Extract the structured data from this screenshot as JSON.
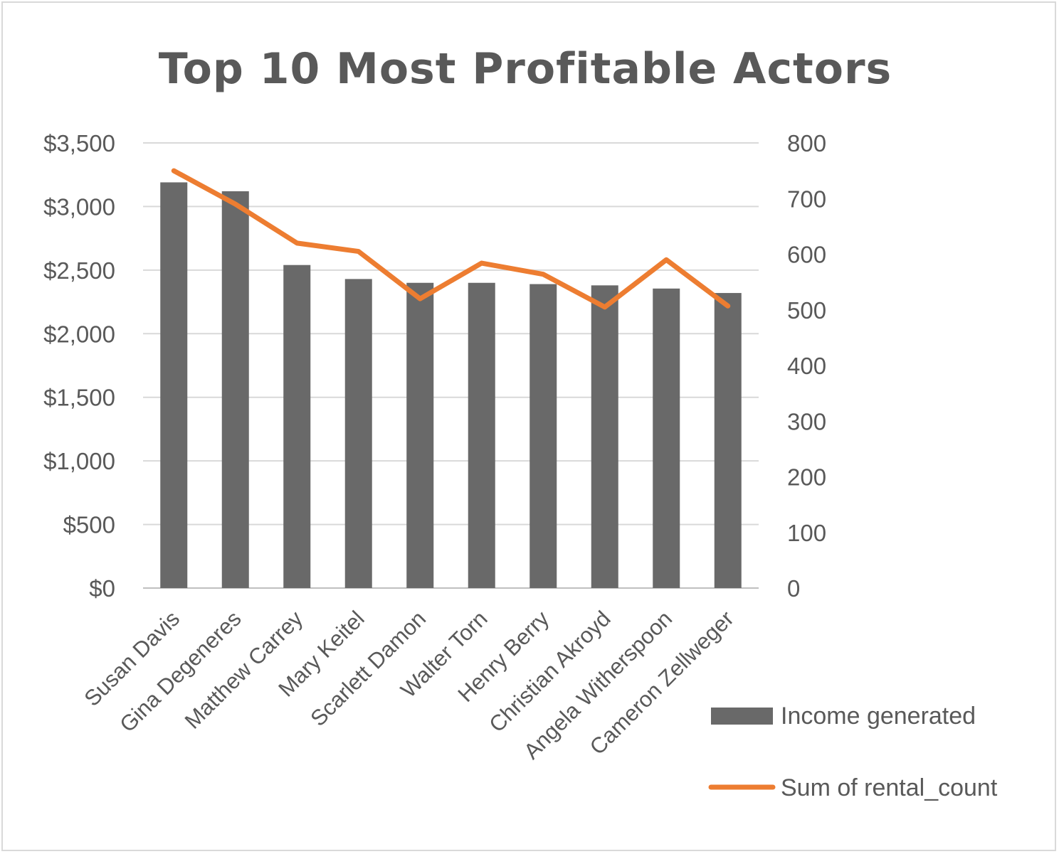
{
  "chart_data": {
    "type": "bar",
    "title": "Top 10 Most Profitable Actors",
    "categories": [
      "Susan Davis",
      "Gina Degeneres",
      "Matthew Carrey",
      "Mary Keitel",
      "Scarlett Damon",
      "Walter Torn",
      "Henry Berry",
      "Christian Akroyd",
      "Angela Witherspoon",
      "Cameron Zellweger"
    ],
    "series": [
      {
        "name": "Income generated",
        "type": "bar",
        "axis": "left",
        "color": "#696969",
        "values": [
          3190,
          3120,
          2540,
          2430,
          2400,
          2400,
          2390,
          2380,
          2355,
          2320
        ]
      },
      {
        "name": "Sum of rental_count",
        "type": "line",
        "axis": "right",
        "color": "#ed7d31",
        "values": [
          750,
          690,
          620,
          605,
          520,
          584,
          564,
          505,
          590,
          507
        ]
      }
    ],
    "y_left": {
      "ylim": [
        0,
        3500
      ],
      "ticks": [
        "$0",
        "$500",
        "$1,000",
        "$1,500",
        "$2,000",
        "$2,500",
        "$3,000",
        "$3,500"
      ],
      "tick_values": [
        0,
        500,
        1000,
        1500,
        2000,
        2500,
        3000,
        3500
      ]
    },
    "y_right": {
      "ylim": [
        0,
        800
      ],
      "ticks": [
        "0",
        "100",
        "200",
        "300",
        "400",
        "500",
        "600",
        "700",
        "800"
      ],
      "tick_values": [
        0,
        100,
        200,
        300,
        400,
        500,
        600,
        700,
        800
      ]
    },
    "grid": true,
    "legend": "bottom-right",
    "xlabel": "",
    "ylabel": ""
  }
}
